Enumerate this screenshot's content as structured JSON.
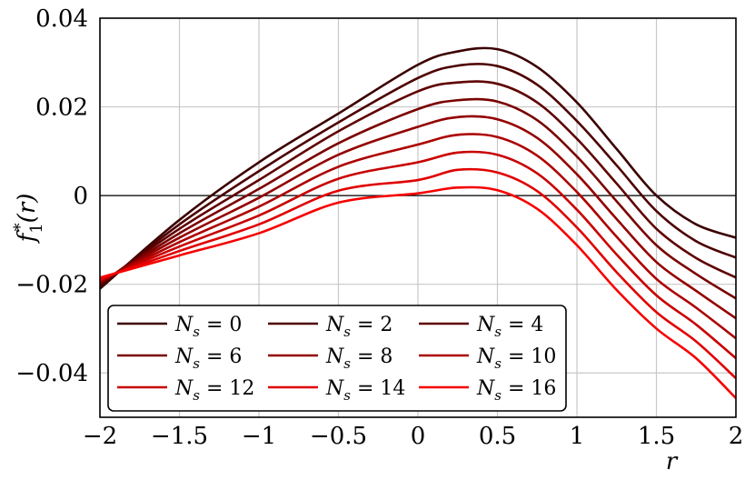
{
  "chart_data": {
    "type": "line",
    "xlabel": "r",
    "ylabel": "f_1^*(r)",
    "xlim": [
      -2,
      2
    ],
    "ylim": [
      -0.05,
      0.04
    ],
    "x_ticks": [
      -2,
      -1.5,
      -1,
      -0.5,
      0,
      0.5,
      1,
      1.5,
      2
    ],
    "x_tick_labels": [
      "−2",
      "−1.5",
      "−1",
      "−0.5",
      "0",
      "0.5",
      "1",
      "1.5",
      "2"
    ],
    "y_ticks": [
      -0.04,
      -0.02,
      0,
      0.02,
      0.04
    ],
    "y_tick_labels": [
      "−0.04",
      "−0.02",
      "0",
      "0.02",
      "0.04"
    ],
    "grid": true,
    "legend_position": "bottom-left",
    "legend_columns": 3,
    "x": [
      -2,
      -1.5,
      -1,
      -0.5,
      0,
      0.25,
      0.5,
      0.75,
      1,
      1.25,
      1.5,
      1.75,
      2
    ],
    "series": [
      {
        "name": "N_s = 0",
        "color": "#3b0000",
        "values": [
          -0.021,
          -0.0055,
          0.0075,
          0.0185,
          0.0295,
          0.0325,
          0.033,
          0.029,
          0.021,
          0.0105,
          0.0,
          -0.0065,
          -0.0095
        ]
      },
      {
        "name": "N_s = 2",
        "color": "#4d0000",
        "values": [
          -0.0205,
          -0.0065,
          0.0055,
          0.0165,
          0.0265,
          0.0293,
          0.0292,
          0.025,
          0.0168,
          0.0068,
          -0.0035,
          -0.0103,
          -0.014
        ]
      },
      {
        "name": "N_s = 4",
        "color": "#5f0000",
        "values": [
          -0.02,
          -0.0075,
          0.0035,
          0.0145,
          0.0235,
          0.0255,
          0.0252,
          0.021,
          0.0128,
          0.0027,
          -0.0075,
          -0.0141,
          -0.0185
        ]
      },
      {
        "name": "N_s = 6",
        "color": "#7a0000",
        "values": [
          -0.0198,
          -0.0085,
          0.0015,
          0.0118,
          0.0195,
          0.0215,
          0.0212,
          0.017,
          0.0088,
          -0.0013,
          -0.0112,
          -0.0177,
          -0.0232
        ]
      },
      {
        "name": "N_s = 8",
        "color": "#940000",
        "values": [
          -0.0195,
          -0.0095,
          -0.0005,
          0.0092,
          0.0155,
          0.0177,
          0.0172,
          0.013,
          0.0048,
          -0.0053,
          -0.015,
          -0.0215,
          -0.0277
        ]
      },
      {
        "name": "N_s = 10",
        "color": "#ad0000",
        "values": [
          -0.0193,
          -0.0105,
          -0.0025,
          0.0065,
          0.0115,
          0.0137,
          0.0132,
          0.009,
          0.0008,
          -0.0093,
          -0.0188,
          -0.0253,
          -0.0322
        ]
      },
      {
        "name": "N_s = 12",
        "color": "#c80000",
        "values": [
          -0.019,
          -0.0115,
          -0.0045,
          0.0038,
          0.0075,
          0.0097,
          0.0092,
          0.005,
          -0.0032,
          -0.0133,
          -0.0225,
          -0.0291,
          -0.0367
        ]
      },
      {
        "name": "N_s = 14",
        "color": "#e00000",
        "values": [
          -0.0188,
          -0.0125,
          -0.0065,
          0.0011,
          0.0035,
          0.0058,
          0.0052,
          0.001,
          -0.0072,
          -0.0173,
          -0.0263,
          -0.0329,
          -0.0412
        ]
      },
      {
        "name": "N_s = 16",
        "color": "#f60000",
        "values": [
          -0.0185,
          -0.0135,
          -0.0085,
          -0.0016,
          0.0005,
          0.0018,
          0.0012,
          -0.003,
          -0.0112,
          -0.0213,
          -0.03,
          -0.0367,
          -0.0457
        ]
      }
    ]
  }
}
